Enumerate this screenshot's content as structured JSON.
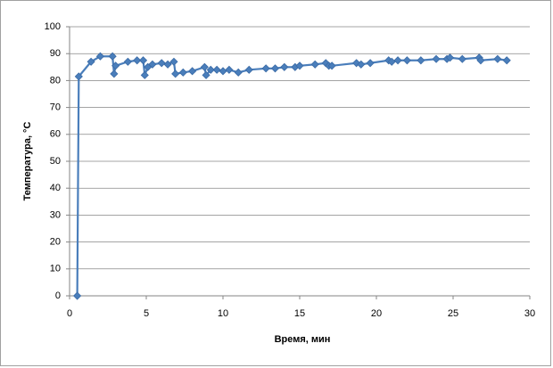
{
  "chart_data": {
    "type": "scatter",
    "line": true,
    "xlabel": "Время, мин",
    "ylabel": "Температура, °C",
    "x": [
      0.5,
      0.6,
      1.4,
      2.0,
      2.8,
      2.9,
      3.0,
      3.8,
      4.4,
      4.8,
      4.9,
      5.1,
      5.4,
      6.0,
      6.4,
      6.8,
      6.9,
      7.4,
      8.0,
      8.8,
      8.9,
      9.2,
      9.6,
      10.0,
      10.4,
      11.0,
      11.7,
      12.8,
      13.4,
      14.0,
      14.7,
      15.0,
      16.0,
      16.7,
      16.9,
      17.1,
      18.7,
      19.0,
      19.6,
      20.8,
      21.0,
      21.4,
      22.0,
      22.9,
      23.9,
      24.6,
      24.8,
      25.6,
      26.7,
      26.8,
      27.9,
      28.5
    ],
    "values": [
      0,
      81.5,
      87,
      89,
      89,
      82.5,
      85.5,
      87,
      87.5,
      87.5,
      82,
      85,
      86,
      86.5,
      86,
      87,
      82.5,
      83,
      83.5,
      85,
      82,
      84,
      84,
      83.5,
      84,
      83,
      84,
      84.5,
      84.5,
      85,
      85,
      85.5,
      86,
      86.5,
      85.5,
      85.5,
      86.5,
      86,
      86.5,
      87.5,
      87,
      87.5,
      87.5,
      87.5,
      88,
      88,
      88.5,
      88,
      88.5,
      87.5,
      88,
      87.5
    ],
    "color": "#4a7ebb",
    "xlim": [
      0,
      30
    ],
    "xticks": [
      0,
      5,
      10,
      15,
      20,
      25,
      30
    ],
    "ylim": [
      0,
      100
    ],
    "yticks": [
      0,
      10,
      20,
      30,
      40,
      50,
      60,
      70,
      80,
      90,
      100
    ],
    "grid": true
  }
}
